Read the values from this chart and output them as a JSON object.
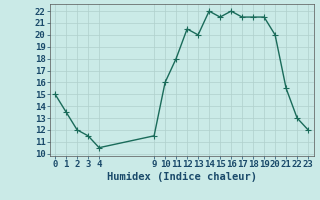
{
  "x": [
    0,
    1,
    2,
    3,
    4,
    9,
    10,
    11,
    12,
    13,
    14,
    15,
    16,
    17,
    18,
    19,
    20,
    21,
    22,
    23
  ],
  "y": [
    15,
    13.5,
    12,
    11.5,
    10.5,
    11.5,
    16,
    18,
    20.5,
    20,
    22,
    21.5,
    22,
    21.5,
    21.5,
    21.5,
    20,
    15.5,
    13,
    12
  ],
  "line_color": "#1a6b5a",
  "marker_color": "#1a6b5a",
  "bg_color": "#caeae7",
  "grid_color": "#b0d0cc",
  "xlabel": "Humidex (Indice chaleur)",
  "xlim": [
    -0.5,
    23.5
  ],
  "ylim": [
    9.8,
    22.6
  ],
  "xticks": [
    0,
    1,
    2,
    3,
    4,
    9,
    10,
    11,
    12,
    13,
    14,
    15,
    16,
    17,
    18,
    19,
    20,
    21,
    22,
    23
  ],
  "yticks": [
    10,
    11,
    12,
    13,
    14,
    15,
    16,
    17,
    18,
    19,
    20,
    21,
    22
  ],
  "tick_label_color": "#1a4a6a",
  "xlabel_color": "#1a4a6a",
  "xlabel_fontsize": 7.5,
  "tick_fontsize": 6.5,
  "linewidth": 1.0,
  "markersize": 2.5
}
